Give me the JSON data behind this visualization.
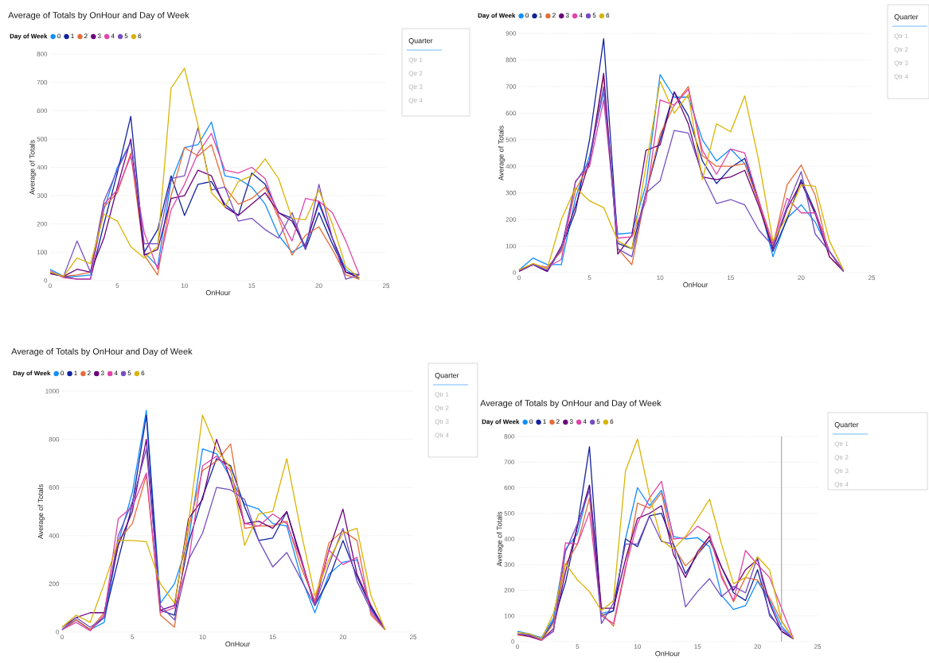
{
  "chart_data": [
    {
      "type": "line",
      "title": "Average of Totals by OnHour and Day of Week",
      "xlabel": "OnHour",
      "ylabel": "Average of Totals",
      "legend_title": "Day of Week",
      "legend": "top left",
      "grid": "y",
      "x": [
        0,
        1,
        2,
        3,
        4,
        5,
        6,
        7,
        8,
        9,
        10,
        11,
        12,
        13,
        14,
        15,
        16,
        17,
        18,
        19,
        20,
        21,
        22,
        23
      ],
      "xlim": [
        0,
        25
      ],
      "xticks": [
        0,
        5,
        10,
        15,
        20,
        25
      ],
      "ylim": [
        0,
        800
      ],
      "yticks": [
        0,
        100,
        200,
        300,
        400,
        500,
        600,
        700,
        800
      ],
      "series": [
        {
          "name": "0",
          "color": "#118dff",
          "values": [
            40,
            15,
            15,
            20,
            250,
            400,
            490,
            100,
            50,
            350,
            470,
            480,
            560,
            370,
            360,
            330,
            270,
            160,
            100,
            130,
            270,
            150,
            40,
            5
          ]
        },
        {
          "name": "1",
          "color": "#12239e",
          "values": [
            25,
            15,
            5,
            5,
            200,
            380,
            580,
            100,
            180,
            370,
            230,
            340,
            350,
            270,
            230,
            380,
            340,
            240,
            220,
            110,
            240,
            130,
            30,
            20
          ]
        },
        {
          "name": "2",
          "color": "#e66c37",
          "values": [
            30,
            15,
            20,
            30,
            260,
            310,
            450,
            90,
            20,
            300,
            470,
            440,
            480,
            330,
            270,
            290,
            330,
            220,
            90,
            160,
            190,
            110,
            20,
            5
          ]
        },
        {
          "name": "3",
          "color": "#6b007b",
          "values": [
            25,
            15,
            40,
            30,
            150,
            330,
            500,
            90,
            110,
            290,
            300,
            390,
            370,
            260,
            230,
            270,
            310,
            240,
            210,
            120,
            280,
            150,
            30,
            10
          ]
        },
        {
          "name": "4",
          "color": "#e044a7",
          "values": [
            35,
            10,
            5,
            5,
            270,
            320,
            440,
            170,
            40,
            250,
            340,
            450,
            520,
            390,
            380,
            400,
            360,
            230,
            140,
            290,
            280,
            240,
            140,
            20
          ]
        },
        {
          "name": "5",
          "color": "#744ec2",
          "values": [
            30,
            15,
            140,
            30,
            280,
            390,
            490,
            130,
            130,
            360,
            370,
            540,
            320,
            330,
            210,
            220,
            180,
            150,
            240,
            110,
            340,
            150,
            5,
            20
          ]
        },
        {
          "name": "6",
          "color": "#d9b300",
          "values": [
            30,
            15,
            80,
            60,
            235,
            210,
            120,
            80,
            120,
            680,
            750,
            550,
            310,
            260,
            350,
            370,
            430,
            360,
            220,
            215,
            320,
            200,
            50,
            10
          ]
        }
      ]
    },
    {
      "type": "other",
      "title": "Quarter",
      "annotations": [
        "Qtr 1",
        "Qtr 2",
        "Qtr 3",
        "Qtr 4"
      ]
    },
    {
      "type": "line",
      "xlabel": "OnHour",
      "ylabel": "Average of Totals",
      "legend_title": "Day of Week",
      "legend": "top left",
      "grid": "y",
      "x": [
        0,
        1,
        2,
        3,
        4,
        5,
        6,
        7,
        8,
        9,
        10,
        11,
        12,
        13,
        14,
        15,
        16,
        17,
        18,
        19,
        20,
        21,
        22,
        23
      ],
      "xlim": [
        0,
        25
      ],
      "xticks": [
        0,
        5,
        10,
        15,
        20,
        25
      ],
      "ylim": [
        0,
        900
      ],
      "yticks": [
        0,
        100,
        200,
        300,
        400,
        500,
        600,
        700,
        800,
        900
      ],
      "series": [
        {
          "name": "0",
          "color": "#118dff",
          "values": [
            10,
            55,
            30,
            30,
            280,
            440,
            680,
            145,
            150,
            330,
            745,
            660,
            660,
            500,
            420,
            465,
            410,
            270,
            60,
            205,
            255,
            190,
            80,
            10
          ]
        },
        {
          "name": "1",
          "color": "#12239e",
          "values": [
            10,
            30,
            5,
            90,
            230,
            500,
            880,
            110,
            90,
            300,
            500,
            680,
            590,
            420,
            335,
            395,
            430,
            270,
            80,
            200,
            350,
            230,
            80,
            5
          ]
        },
        {
          "name": "2",
          "color": "#e66c37",
          "values": [
            10,
            30,
            20,
            80,
            310,
            410,
            740,
            90,
            30,
            300,
            520,
            630,
            700,
            440,
            400,
            400,
            410,
            260,
            100,
            330,
            405,
            290,
            60,
            10
          ]
        },
        {
          "name": "3",
          "color": "#6b007b",
          "values": [
            5,
            30,
            5,
            100,
            250,
            420,
            750,
            70,
            140,
            460,
            480,
            680,
            560,
            360,
            350,
            360,
            385,
            250,
            90,
            240,
            340,
            220,
            60,
            5
          ]
        },
        {
          "name": "4",
          "color": "#e044a7",
          "values": [
            10,
            30,
            20,
            50,
            345,
            400,
            650,
            130,
            135,
            270,
            650,
            630,
            690,
            460,
            370,
            465,
            450,
            270,
            110,
            280,
            225,
            225,
            80,
            10
          ]
        },
        {
          "name": "5",
          "color": "#744ec2",
          "values": [
            10,
            30,
            10,
            90,
            340,
            420,
            700,
            90,
            60,
            300,
            345,
            535,
            525,
            370,
            260,
            275,
            255,
            160,
            100,
            250,
            380,
            145,
            80,
            5
          ]
        },
        {
          "name": "6",
          "color": "#d9b300",
          "values": [
            10,
            35,
            15,
            200,
            320,
            270,
            245,
            120,
            90,
            400,
            720,
            600,
            670,
            350,
            560,
            530,
            665,
            420,
            120,
            210,
            330,
            325,
            120,
            10
          ]
        }
      ]
    },
    {
      "type": "other",
      "title": "Quarter",
      "annotations": [
        "Qtr 1",
        "Qtr 2",
        "Qtr 3",
        "Qtr 4"
      ]
    },
    {
      "type": "line",
      "title": "Average of Totals by OnHour and Day of Week",
      "xlabel": "OnHour",
      "ylabel": "Average of Totals",
      "legend_title": "Day of Week",
      "legend": "top left",
      "grid": "y",
      "x": [
        0,
        1,
        2,
        3,
        4,
        5,
        6,
        7,
        8,
        9,
        10,
        11,
        12,
        13,
        14,
        15,
        16,
        17,
        18,
        19,
        20,
        21,
        22,
        23
      ],
      "xlim": [
        0,
        25
      ],
      "xticks": [
        0,
        5,
        10,
        15,
        20,
        25
      ],
      "ylim": [
        0,
        1000
      ],
      "yticks": [
        0,
        200,
        400,
        600,
        800,
        1000
      ],
      "series": [
        {
          "name": "0",
          "color": "#118dff",
          "values": [
            10,
            50,
            10,
            40,
            370,
            580,
            920,
            120,
            200,
            380,
            760,
            740,
            640,
            530,
            510,
            450,
            440,
            230,
            80,
            240,
            290,
            300,
            100,
            10
          ]
        },
        {
          "name": "1",
          "color": "#12239e",
          "values": [
            10,
            50,
            10,
            60,
            300,
            530,
            900,
            90,
            70,
            370,
            560,
            720,
            690,
            520,
            380,
            390,
            500,
            300,
            110,
            220,
            380,
            230,
            100,
            10
          ]
        },
        {
          "name": "2",
          "color": "#e66c37",
          "values": [
            10,
            50,
            10,
            80,
            380,
            450,
            650,
            70,
            20,
            430,
            670,
            710,
            780,
            430,
            440,
            440,
            460,
            270,
            130,
            370,
            420,
            380,
            70,
            10
          ]
        },
        {
          "name": "3",
          "color": "#6b007b",
          "values": [
            20,
            60,
            80,
            80,
            360,
            500,
            800,
            90,
            110,
            470,
            550,
            800,
            630,
            450,
            460,
            430,
            500,
            310,
            110,
            340,
            510,
            240,
            110,
            10
          ]
        },
        {
          "name": "4",
          "color": "#e044a7",
          "values": [
            10,
            40,
            5,
            70,
            470,
            520,
            660,
            80,
            100,
            290,
            690,
            730,
            670,
            450,
            440,
            490,
            450,
            300,
            120,
            340,
            280,
            310,
            80,
            10
          ]
        },
        {
          "name": "5",
          "color": "#744ec2",
          "values": [
            10,
            60,
            20,
            60,
            400,
            540,
            760,
            110,
            50,
            300,
            410,
            600,
            590,
            550,
            380,
            270,
            330,
            220,
            110,
            280,
            430,
            210,
            90,
            10
          ]
        },
        {
          "name": "6",
          "color": "#d9b300",
          "values": [
            20,
            70,
            40,
            200,
            380,
            380,
            375,
            200,
            120,
            450,
            900,
            760,
            680,
            360,
            490,
            500,
            720,
            420,
            150,
            300,
            410,
            430,
            150,
            10
          ]
        }
      ]
    },
    {
      "type": "other",
      "title": "Quarter",
      "annotations": [
        "Qtr 1",
        "Qtr 2",
        "Qtr 3",
        "Qtr 4"
      ]
    },
    {
      "type": "line",
      "title": "Average of Totals by OnHour and Day of Week",
      "xlabel": "OnHour",
      "ylabel": "Average of Totals",
      "legend_title": "Day of Week",
      "legend": "top left",
      "grid": "y",
      "x": [
        0,
        1,
        2,
        3,
        4,
        5,
        6,
        7,
        8,
        9,
        10,
        11,
        12,
        13,
        14,
        15,
        16,
        17,
        18,
        19,
        20,
        21,
        22,
        23
      ],
      "xlim": [
        0,
        25
      ],
      "xticks": [
        0,
        5,
        10,
        15,
        20,
        25
      ],
      "ylim": [
        0,
        800
      ],
      "yticks": [
        0,
        100,
        200,
        300,
        400,
        500,
        600,
        700,
        800
      ],
      "ref_lines": [
        {
          "axis": "x",
          "value": 22,
          "color": "#999999"
        }
      ],
      "series": [
        {
          "name": "0",
          "color": "#118dff",
          "values": [
            40,
            30,
            15,
            90,
            360,
            420,
            610,
            110,
            120,
            400,
            600,
            530,
            590,
            410,
            400,
            405,
            370,
            180,
            125,
            140,
            235,
            160,
            60,
            10
          ]
        },
        {
          "name": "1",
          "color": "#12239e",
          "values": [
            30,
            25,
            5,
            80,
            230,
            450,
            760,
            100,
            120,
            400,
            370,
            490,
            500,
            380,
            265,
            340,
            395,
            290,
            190,
            160,
            280,
            110,
            40,
            10
          ]
        },
        {
          "name": "2",
          "color": "#e66c37",
          "values": [
            25,
            20,
            5,
            70,
            300,
            380,
            560,
            110,
            60,
            280,
            540,
            520,
            580,
            370,
            295,
            340,
            410,
            260,
            155,
            250,
            240,
            170,
            80,
            10
          ]
        },
        {
          "name": "3",
          "color": "#6b007b",
          "values": [
            30,
            20,
            5,
            50,
            270,
            450,
            610,
            130,
            130,
            320,
            480,
            500,
            530,
            340,
            250,
            350,
            410,
            290,
            200,
            280,
            320,
            150,
            40,
            10
          ]
        },
        {
          "name": "4",
          "color": "#e044a7",
          "values": [
            30,
            25,
            5,
            40,
            385,
            380,
            505,
            100,
            70,
            290,
            460,
            560,
            625,
            400,
            405,
            450,
            420,
            250,
            160,
            355,
            300,
            250,
            130,
            10
          ]
        },
        {
          "name": "5",
          "color": "#744ec2",
          "values": [
            30,
            25,
            10,
            40,
            350,
            460,
            590,
            70,
            150,
            380,
            380,
            490,
            390,
            380,
            135,
            195,
            245,
            175,
            215,
            190,
            330,
            100,
            50,
            10
          ]
        },
        {
          "name": "6",
          "color": "#d9b300",
          "values": [
            35,
            30,
            10,
            110,
            305,
            240,
            195,
            120,
            160,
            665,
            790,
            570,
            395,
            360,
            410,
            480,
            555,
            380,
            225,
            250,
            330,
            280,
            80,
            10
          ]
        }
      ]
    },
    {
      "type": "other",
      "title": "Quarter",
      "annotations": [
        "Qtr 1",
        "Qtr 2",
        "Qtr 3",
        "Qtr 4"
      ]
    }
  ]
}
